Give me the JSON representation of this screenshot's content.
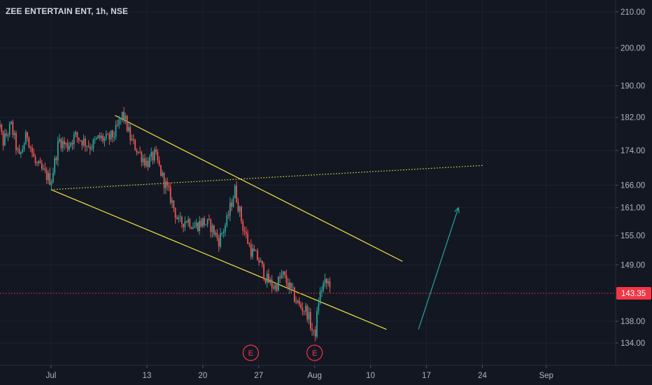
{
  "header": {
    "title": "ZEE ENTERTAIN ENT, 1h, NSE"
  },
  "colors": {
    "background": "#131722",
    "grid": "#1e2230",
    "axis_text": "#b2b5be",
    "up": "#26a69a",
    "down": "#ef5350",
    "trendline": "#f0e442",
    "arrow": "#26a69a",
    "last_price": "#f23645"
  },
  "chart_data": {
    "type": "candlestick",
    "title": "ZEE ENTERTAIN ENT, 1h, NSE",
    "y_ticks": [
      134.0,
      138.0,
      143.35,
      149.0,
      155.0,
      161.0,
      166.0,
      174.0,
      182.0,
      190.0,
      200.0,
      210.0
    ],
    "y_tick_labels": [
      "134.00",
      "138.00",
      "143.35",
      "149.00",
      "155.00",
      "161.00",
      "166.00",
      "174.00",
      "182.00",
      "190.00",
      "200.00",
      "210.00"
    ],
    "x_tick_labels": [
      "Jul",
      "13",
      "20",
      "27",
      "Aug",
      "10",
      "17",
      "24",
      "Sep"
    ],
    "last_price": 143.35,
    "last_price_label": "143.35",
    "price_scale": "log",
    "ylim": [
      131,
      213
    ],
    "event_markers": [
      {
        "label": "E",
        "date": "Jul 26"
      },
      {
        "label": "E",
        "date": "Aug 3"
      }
    ],
    "price_path": [
      [
        "Jun 24",
        184.0
      ],
      [
        "Jun 25",
        176.0
      ],
      [
        "Jun 26",
        180.0
      ],
      [
        "Jun 27",
        172.0
      ],
      [
        "Jun 28",
        178.0
      ],
      [
        "Jun 29",
        171.0
      ],
      [
        "Jul 1",
        167.0
      ],
      [
        "Jul 2",
        176.5
      ],
      [
        "Jul 3",
        175.0
      ],
      [
        "Jul 4",
        177.5
      ],
      [
        "Jul 6",
        175.0
      ],
      [
        "Jul 7",
        177.0
      ],
      [
        "Jul 8",
        176.5
      ],
      [
        "Jul 9",
        178.0
      ],
      [
        "Jul 10",
        183.0
      ],
      [
        "Jul 11",
        176.5
      ],
      [
        "Jul 12",
        173.5
      ],
      [
        "Jul 13",
        171.0
      ],
      [
        "Jul 14",
        173.0
      ],
      [
        "Jul 15",
        167.5
      ],
      [
        "Jul 16",
        163.0
      ],
      [
        "Jul 17",
        157.5
      ],
      [
        "Jul 18",
        158.5
      ],
      [
        "Jul 19",
        157.0
      ],
      [
        "Jul 20",
        158.0
      ],
      [
        "Jul 21",
        157.0
      ],
      [
        "Jul 22",
        154.0
      ],
      [
        "Jul 23",
        158.0
      ],
      [
        "Jul 24",
        165.0
      ],
      [
        "Jul 25",
        157.0
      ],
      [
        "Jul 26",
        152.0
      ],
      [
        "Jul 27",
        150.0
      ],
      [
        "Jul 28",
        146.0
      ],
      [
        "Jul 29",
        144.5
      ],
      [
        "Jul 30",
        147.0
      ],
      [
        "Jul 31",
        144.0
      ],
      [
        "Aug 1",
        141.0
      ],
      [
        "Aug 2",
        140.0
      ],
      [
        "Aug 3",
        134.8
      ],
      [
        "Aug 3.5",
        142.0
      ],
      [
        "Aug 4",
        145.0
      ],
      [
        "Aug 5",
        145.5
      ]
    ],
    "drawings": [
      {
        "kind": "trendline",
        "style": "solid",
        "from": [
          "Jul 9",
          182.5
        ],
        "to": [
          "Aug 14",
          149.7
        ]
      },
      {
        "kind": "trendline",
        "style": "solid",
        "from": [
          "Jul 1",
          165.0
        ],
        "to": [
          "Aug 12",
          136.5
        ]
      },
      {
        "kind": "trendline",
        "style": "dotted",
        "from": [
          "Jul 1",
          165.0
        ],
        "to": [
          "Aug 24",
          170.5
        ]
      },
      {
        "kind": "arrow",
        "from": [
          "Aug 16",
          136.5
        ],
        "to": [
          "Aug 21",
          161.0
        ]
      }
    ]
  }
}
